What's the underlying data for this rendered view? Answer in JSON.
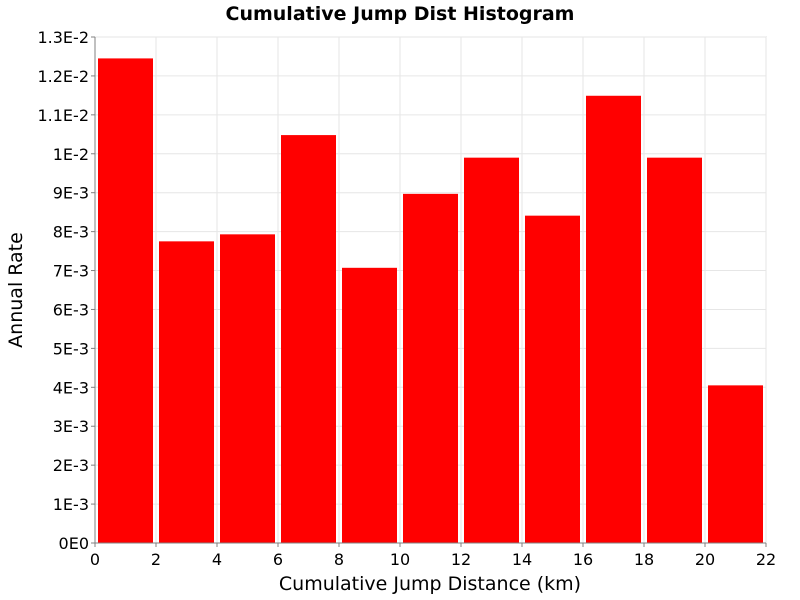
{
  "chart_data": {
    "type": "bar",
    "title": "Cumulative Jump Dist Histogram",
    "xlabel": "Cumulative Jump Distance (km)",
    "ylabel": "Annual Rate",
    "xlim": [
      0,
      22
    ],
    "ylim": [
      0,
      0.013
    ],
    "x_ticks": [
      0,
      2,
      4,
      6,
      8,
      10,
      12,
      14,
      16,
      18,
      20,
      22
    ],
    "x_tick_labels": [
      "0",
      "2",
      "4",
      "6",
      "8",
      "10",
      "12",
      "14",
      "16",
      "18",
      "20",
      "22"
    ],
    "y_ticks": [
      0,
      0.001,
      0.002,
      0.003,
      0.004,
      0.005,
      0.006,
      0.007,
      0.008,
      0.009,
      0.01,
      0.011,
      0.012,
      0.013
    ],
    "y_tick_labels": [
      "0E0",
      "1E-3",
      "2E-3",
      "3E-3",
      "4E-3",
      "5E-3",
      "6E-3",
      "7E-3",
      "8E-3",
      "9E-3",
      "1E-2",
      "1.1E-2",
      "1.2E-2",
      "1.3E-2"
    ],
    "grid": true,
    "bar_color": "#ff0000",
    "bin_width": 2,
    "bins": [
      {
        "x": 1,
        "value": 0.01245
      },
      {
        "x": 3,
        "value": 0.00775
      },
      {
        "x": 5,
        "value": 0.00793
      },
      {
        "x": 7,
        "value": 0.01048
      },
      {
        "x": 9,
        "value": 0.00707
      },
      {
        "x": 11,
        "value": 0.00897
      },
      {
        "x": 13,
        "value": 0.0099
      },
      {
        "x": 15,
        "value": 0.00841
      },
      {
        "x": 17,
        "value": 0.01149
      },
      {
        "x": 19,
        "value": 0.0099
      },
      {
        "x": 21,
        "value": 0.00405
      }
    ]
  }
}
